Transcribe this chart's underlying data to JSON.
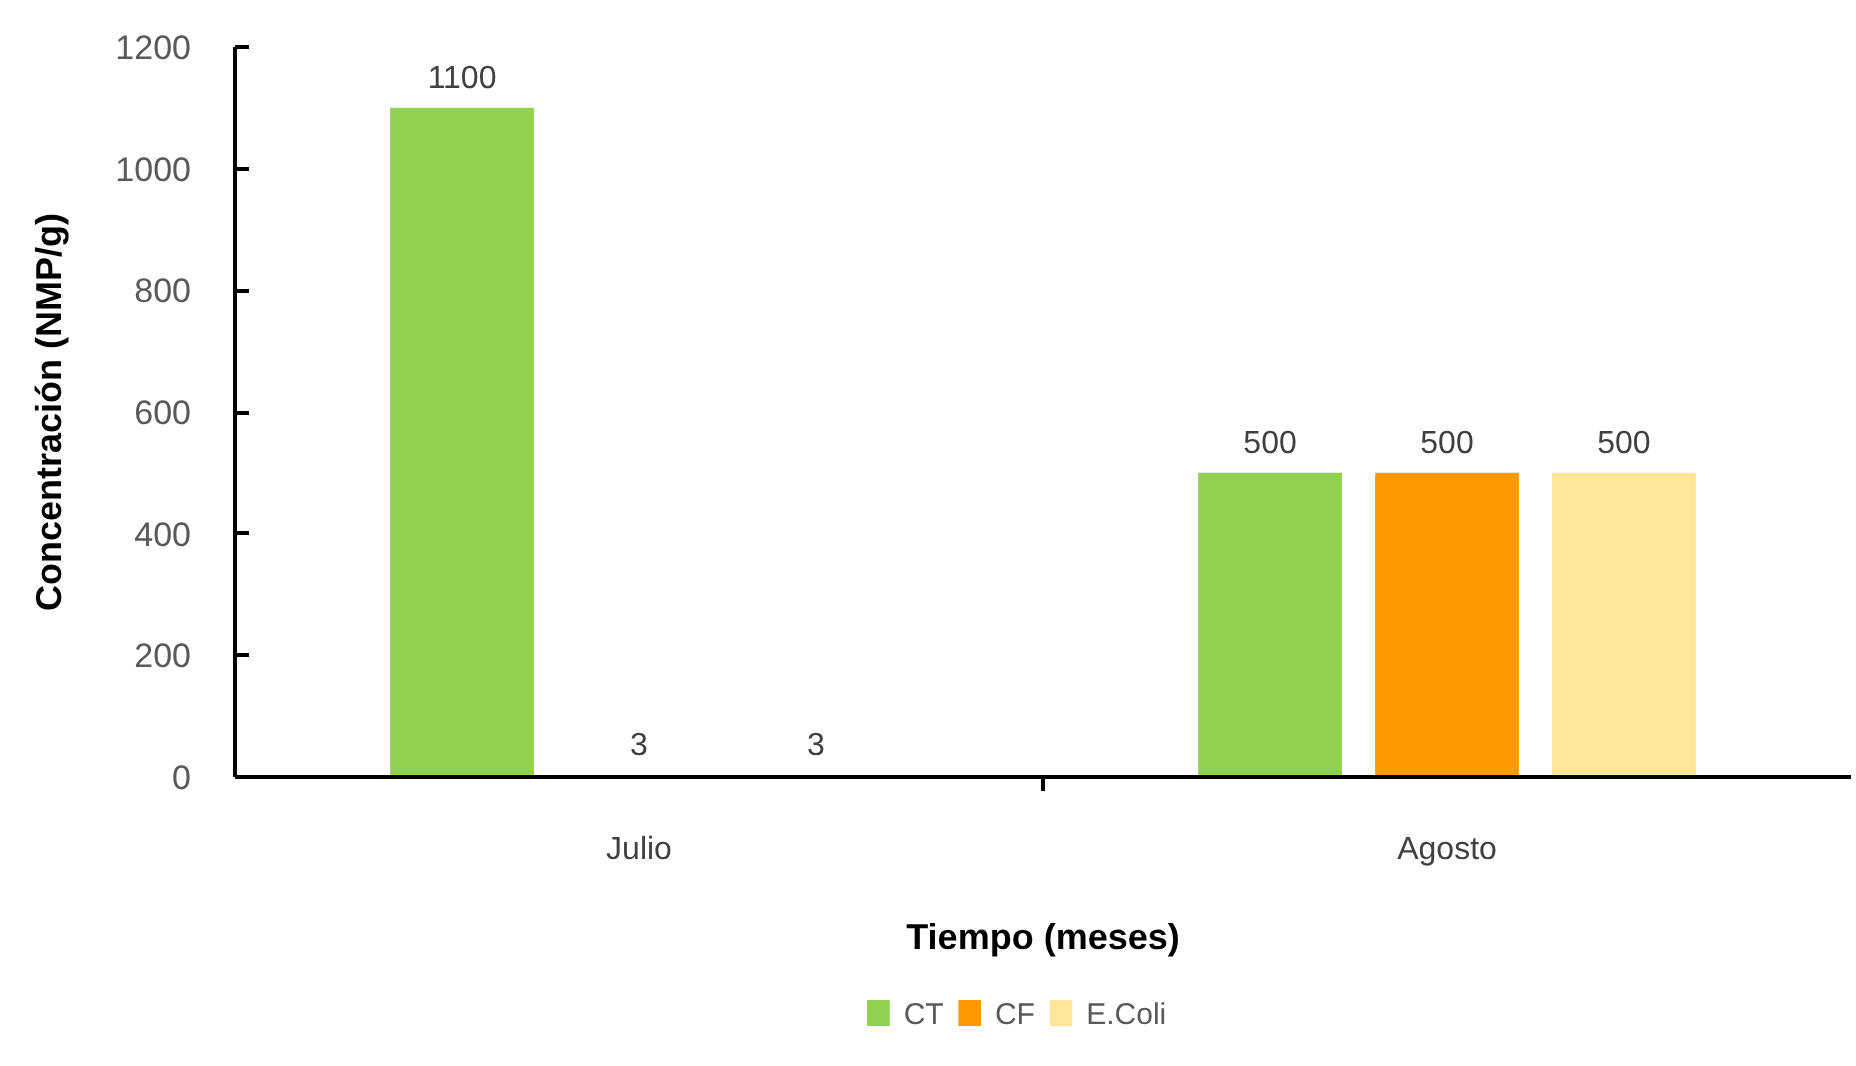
{
  "chart_data": {
    "type": "bar",
    "categories": [
      "Julio",
      "Agosto"
    ],
    "series": [
      {
        "name": "CT",
        "color": "#92d050",
        "values": [
          1100,
          500
        ]
      },
      {
        "name": "CF",
        "color": "#ff9900",
        "values": [
          3,
          500
        ]
      },
      {
        "name": "E.Coli",
        "color": "#ffe699",
        "values": [
          3,
          500
        ]
      }
    ],
    "xlabel": "Tiempo (meses)",
    "ylabel": "Concentración (NMP/g)",
    "ylim": [
      0,
      1200
    ],
    "yticks": [
      0,
      200,
      400,
      600,
      800,
      1000,
      1200
    ],
    "data_labels": true,
    "legend": "bottom",
    "grid": false
  }
}
